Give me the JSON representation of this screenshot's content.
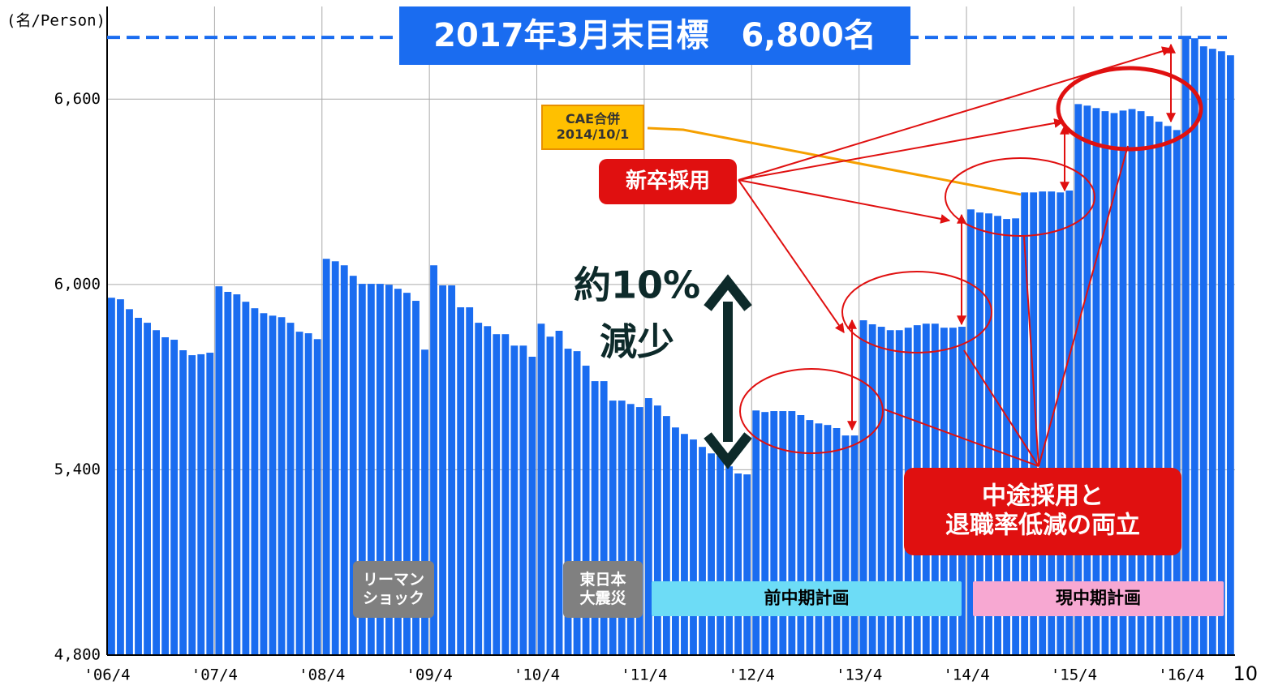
{
  "chart_data": {
    "type": "bar",
    "title": "2017年3月末目標　6,800名",
    "y_axis_label": "(名/Person)",
    "page_number": "10",
    "target": 6800,
    "color": "#1a6cf0",
    "grid": true,
    "ylim": [
      4800,
      6900
    ],
    "yticks": [
      {
        "value": 4800,
        "label": "4,800"
      },
      {
        "value": 5400,
        "label": "5,400"
      },
      {
        "value": 6000,
        "label": "6,000"
      },
      {
        "value": 6600,
        "label": "6,600"
      }
    ],
    "categories": [
      "'06/4",
      null,
      null,
      null,
      null,
      null,
      null,
      null,
      null,
      null,
      null,
      null,
      "'07/4",
      null,
      null,
      null,
      null,
      null,
      null,
      null,
      null,
      null,
      null,
      null,
      "'08/4",
      null,
      null,
      null,
      null,
      null,
      null,
      null,
      null,
      null,
      null,
      null,
      "'09/4",
      null,
      null,
      null,
      null,
      null,
      null,
      null,
      null,
      null,
      null,
      null,
      "'10/4",
      null,
      null,
      null,
      null,
      null,
      null,
      null,
      null,
      null,
      null,
      null,
      "'11/4",
      null,
      null,
      null,
      null,
      null,
      null,
      null,
      null,
      null,
      null,
      null,
      "'12/4",
      null,
      null,
      null,
      null,
      null,
      null,
      null,
      null,
      null,
      null,
      null,
      "'13/4",
      null,
      null,
      null,
      null,
      null,
      null,
      null,
      null,
      null,
      null,
      null,
      "'14/4",
      null,
      null,
      null,
      null,
      null,
      null,
      null,
      null,
      null,
      null,
      null,
      "'15/4",
      null,
      null,
      null,
      null,
      null,
      null,
      null,
      null,
      null,
      null,
      null,
      "'16/4",
      null,
      null,
      null,
      null,
      null
    ],
    "values": [
      5957,
      5952,
      5920,
      5892,
      5876,
      5852,
      5829,
      5821,
      5787,
      5771,
      5774,
      5779,
      5994,
      5976,
      5968,
      5944,
      5923,
      5907,
      5899,
      5894,
      5876,
      5847,
      5842,
      5823,
      6083,
      6075,
      6062,
      6028,
      6002,
      6002,
      6002,
      5999,
      5986,
      5973,
      5947,
      5789,
      6062,
      5997,
      5997,
      5926,
      5926,
      5876,
      5865,
      5839,
      5839,
      5802,
      5802,
      5766,
      5873,
      5831,
      5850,
      5792,
      5784,
      5737,
      5687,
      5687,
      5624,
      5624,
      5613,
      5603,
      5632,
      5608,
      5574,
      5537,
      5516,
      5498,
      5474,
      5453,
      5446,
      5411,
      5388,
      5385,
      5592,
      5587,
      5590,
      5590,
      5590,
      5577,
      5561,
      5550,
      5545,
      5535,
      5511,
      5511,
      5884,
      5871,
      5863,
      5852,
      5852,
      5860,
      5868,
      5873,
      5873,
      5860,
      5860,
      5863,
      6243,
      6233,
      6230,
      6222,
      6212,
      6214,
      6298,
      6298,
      6301,
      6301,
      6298,
      6304,
      6584,
      6579,
      6571,
      6561,
      6555,
      6563,
      6568,
      6561,
      6545,
      6527,
      6513,
      6500,
      6802,
      6797,
      6771,
      6763,
      6755,
      6742
    ],
    "annotations": {
      "merger": [
        "CAE合併",
        "2014/10/1"
      ],
      "new_grad": "新卒採用",
      "decrease": [
        "約10%",
        "減少"
      ],
      "mid_career": [
        "中途採用と",
        "退職率低減の両立"
      ],
      "lehman": [
        "リーマン",
        "ショック"
      ],
      "earthquake": [
        "東日本",
        "大震災"
      ],
      "prev_plan": "前中期計画",
      "curr_plan": "現中期計画"
    }
  }
}
